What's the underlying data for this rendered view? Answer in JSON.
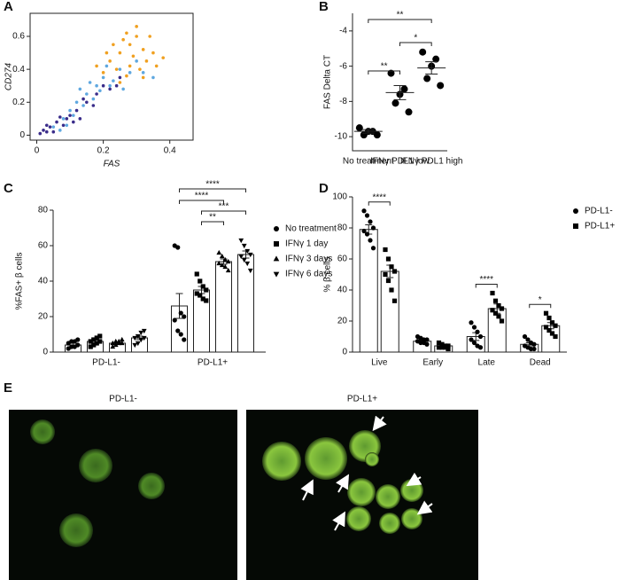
{
  "chart_data": [
    {
      "type": "scatter",
      "panel": "A",
      "xlabel": "FAS",
      "ylabel": "CD274",
      "xlim": [
        -0.02,
        0.47
      ],
      "ylim": [
        -0.03,
        0.74
      ],
      "xticks": [
        0,
        0.2,
        0.4
      ],
      "yticks": [
        0,
        0.2,
        0.4,
        0.6
      ],
      "series": [
        {
          "color": "#5fa8e0",
          "x": [
            0.05,
            0.08,
            0.1,
            0.12,
            0.15,
            0.18,
            0.2,
            0.22,
            0.25,
            0.28,
            0.14,
            0.17,
            0.3,
            0.19,
            0.23,
            0.11,
            0.26,
            0.32,
            0.07,
            0.16,
            0.21,
            0.09,
            0.35,
            0.13
          ],
          "y": [
            0.05,
            0.1,
            0.15,
            0.2,
            0.25,
            0.3,
            0.35,
            0.3,
            0.4,
            0.38,
            0.18,
            0.22,
            0.45,
            0.27,
            0.33,
            0.12,
            0.28,
            0.38,
            0.03,
            0.32,
            0.42,
            0.06,
            0.35,
            0.28
          ]
        },
        {
          "color": "#f0a020",
          "x": [
            0.22,
            0.25,
            0.28,
            0.3,
            0.32,
            0.27,
            0.24,
            0.33,
            0.29,
            0.31,
            0.26,
            0.35,
            0.2,
            0.23,
            0.3,
            0.34,
            0.28,
            0.36,
            0.25,
            0.32,
            0.38,
            0.21,
            0.27,
            0.18
          ],
          "y": [
            0.45,
            0.5,
            0.55,
            0.6,
            0.52,
            0.62,
            0.4,
            0.45,
            0.48,
            0.4,
            0.58,
            0.5,
            0.38,
            0.55,
            0.66,
            0.6,
            0.42,
            0.42,
            0.32,
            0.35,
            0.47,
            0.5,
            0.36,
            0.42
          ]
        },
        {
          "color": "#3a2c8a",
          "x": [
            0.01,
            0.02,
            0.03,
            0.04,
            0.06,
            0.08,
            0.1,
            0.12,
            0.15,
            0.05,
            0.14,
            0.18,
            0.2,
            0.22,
            0.25,
            0.09,
            0.11,
            0.03,
            0.17,
            0.07,
            0.24,
            0.13
          ],
          "y": [
            0.01,
            0.03,
            0.02,
            0.05,
            0.08,
            0.06,
            0.12,
            0.15,
            0.2,
            0.02,
            0.22,
            0.25,
            0.3,
            0.28,
            0.35,
            0.1,
            0.08,
            0.06,
            0.18,
            0.11,
            0.3,
            0.1
          ]
        }
      ]
    },
    {
      "type": "dot",
      "panel": "B",
      "ylabel": "FAS Delta CT",
      "categories": [
        "No treatment",
        "IFNγ PDL1 low",
        "IFNγ PDL1 high"
      ],
      "ylim": [
        -10.8,
        -3
      ],
      "yticks": [
        -10,
        -8,
        -6,
        -4
      ],
      "values": [
        -9.7,
        -7.5,
        -6.1
      ],
      "errors": [
        0.1,
        0.4,
        0.35
      ],
      "points": [
        [
          -9.5,
          -9.7,
          -9.7,
          -9.9,
          -9.9
        ],
        [
          -6.4,
          -7.3,
          -7.6,
          -8.1,
          -8.6
        ],
        [
          -5.2,
          -5.6,
          -6.0,
          -6.7,
          -7.1
        ]
      ],
      "brackets": [
        {
          "between": [
            "No treatment",
            "IFNγ PDL1 low"
          ],
          "label": "**"
        },
        {
          "between": [
            "IFNγ PDL1 low",
            "IFNγ PDL1 high"
          ],
          "label": "*"
        },
        {
          "between": [
            "No treatment",
            "IFNγ PDL1 high"
          ],
          "label": "**"
        }
      ]
    },
    {
      "type": "bar",
      "panel": "C",
      "ylabel": "%FAS+ β cells",
      "categories": [
        "PD-L1-",
        "PD-L1+"
      ],
      "ylim": [
        0,
        80
      ],
      "yticks": [
        0,
        20,
        40,
        60,
        80
      ],
      "series": [
        {
          "name": "No treatment",
          "marker": "circle",
          "values": [
            4,
            26
          ],
          "errors": [
            1,
            7
          ],
          "points": [
            [
              2,
              3,
              3,
              4,
              5,
              6,
              6,
              7
            ],
            [
              60,
              59,
              22,
              20,
              18,
              12,
              10,
              7
            ]
          ]
        },
        {
          "name": "IFNγ 1 day",
          "marker": "square",
          "values": [
            6,
            35
          ],
          "errors": [
            0.8,
            2
          ],
          "points": [
            [
              3,
              4,
              5,
              6,
              6,
              7,
              8,
              9
            ],
            [
              44,
              40,
              37,
              35,
              33,
              32,
              30,
              29
            ]
          ]
        },
        {
          "name": "IFNγ 3 days",
          "marker": "triangle",
          "values": [
            5,
            51
          ],
          "errors": [
            0.5,
            1.5
          ],
          "points": [
            [
              3,
              4,
              5,
              5,
              5,
              6,
              6,
              7
            ],
            [
              56,
              54,
              52,
              51,
              50,
              49,
              48,
              46
            ]
          ]
        },
        {
          "name": "IFNγ 6 days",
          "marker": "triangle-down",
          "values": [
            8,
            55
          ],
          "errors": [
            1,
            2
          ],
          "points": [
            [
              4,
              5,
              7,
              8,
              8,
              9,
              11,
              12
            ],
            [
              63,
              60,
              57,
              55,
              54,
              52,
              50,
              46
            ]
          ]
        }
      ],
      "brackets": [
        {
          "category": "PD-L1+",
          "between": [
            "No treatment",
            "IFNγ 6 days"
          ],
          "label": "****"
        },
        {
          "category": "PD-L1+",
          "between": [
            "No treatment",
            "IFNγ 3 days"
          ],
          "label": "****"
        },
        {
          "category": "PD-L1+",
          "between": [
            "IFNγ 1 day",
            "IFNγ 6 days"
          ],
          "label": "***"
        },
        {
          "category": "PD-L1+",
          "between": [
            "IFNγ 1 day",
            "IFNγ 3 days"
          ],
          "label": "**"
        }
      ]
    },
    {
      "type": "bar",
      "panel": "D",
      "ylabel": "% β cells",
      "categories": [
        "Live",
        "Early",
        "Late",
        "Dead"
      ],
      "ylim": [
        0,
        100
      ],
      "yticks": [
        0,
        20,
        40,
        60,
        80,
        100
      ],
      "series": [
        {
          "name": "PD-L1-",
          "marker": "circle",
          "values": [
            79,
            7,
            10,
            5
          ],
          "errors": [
            3,
            0.6,
            2.5,
            1
          ],
          "points": [
            [
              91,
              88,
              84,
              80,
              78,
              76,
              72,
              67
            ],
            [
              10,
              9,
              8,
              8,
              7,
              6,
              6,
              5
            ],
            [
              19,
              16,
              13,
              10,
              8,
              6,
              4,
              3
            ],
            [
              10,
              8,
              6,
              5,
              4,
              3,
              2,
              2
            ]
          ]
        },
        {
          "name": "PD-L1+",
          "marker": "square",
          "values": [
            52,
            4,
            28,
            17
          ],
          "errors": [
            4,
            0.5,
            3,
            2
          ],
          "points": [
            [
              66,
              60,
              55,
              52,
              50,
              46,
              40,
              33
            ],
            [
              6,
              5,
              4,
              4,
              3,
              3,
              3,
              2
            ],
            [
              38,
              33,
              30,
              28,
              27,
              25,
              23,
              20
            ],
            [
              25,
              22,
              19,
              17,
              16,
              14,
              12,
              10
            ]
          ]
        }
      ],
      "brackets": [
        {
          "category": "Live",
          "label": "****"
        },
        {
          "category": "Late",
          "label": "****"
        },
        {
          "category": "Dead",
          "label": "*"
        }
      ]
    }
  ],
  "image_panel": {
    "panel": "E",
    "titles": [
      "PD-L1-",
      "PD-L1+"
    ]
  }
}
